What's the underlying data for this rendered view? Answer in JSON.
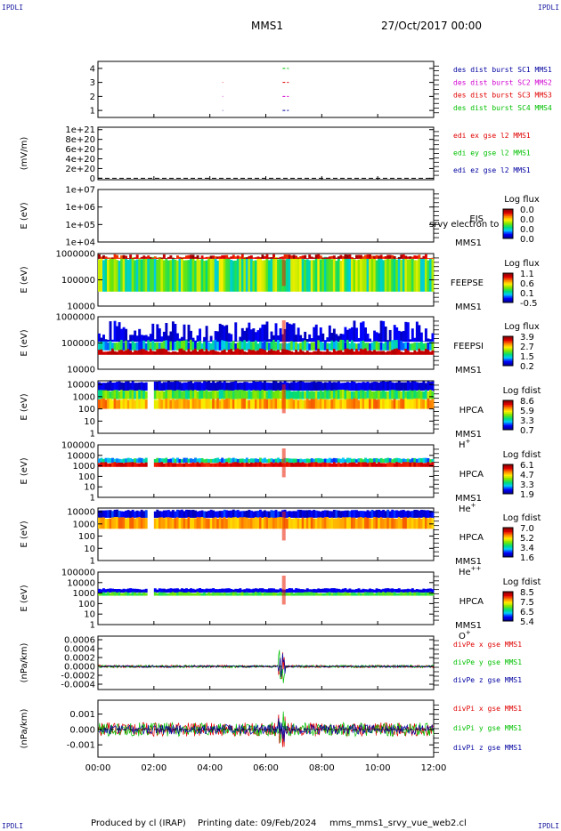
{
  "header": {
    "corner_tl": "IPDLI",
    "corner_tr": "IPDLI",
    "corner_bl": "IPDLI",
    "corner_br": "IPDLI",
    "mission": "MMS1",
    "date": "27/Oct/2017 00:00"
  },
  "footer": {
    "produced": "Produced by cl (IRAP)",
    "printed": "Printing date: 09/Feb/2024",
    "script": "mms_mms1_srvy_vue_web2.cl"
  },
  "chart_data": {
    "type": "multi-panel",
    "x_ticks": [
      "00:00",
      "02:00",
      "04:00",
      "06:00",
      "08:00",
      "10:00",
      "12:00"
    ],
    "x_range_hours": [
      0,
      12
    ],
    "panels": [
      {
        "id": "burst",
        "type": "scatter",
        "ylabel": "",
        "ticks": [
          "4",
          "3",
          "2",
          "1"
        ],
        "tick_values": [
          4,
          3,
          2,
          1
        ],
        "ylim": [
          0.5,
          4.5
        ],
        "series": [
          {
            "name": "des dist burst SC1 MMS1",
            "color": "#0000a0",
            "level": 1,
            "segments": [
              [
                4.45,
                4.47
              ],
              [
                6.6,
                6.82
              ]
            ]
          },
          {
            "name": "des dist burst SC2 MMS2",
            "color": "#d000d0",
            "level": 2,
            "segments": [
              [
                4.45,
                4.47
              ],
              [
                6.6,
                6.82
              ]
            ]
          },
          {
            "name": "des dist burst SC3 MMS3",
            "color": "#e00000",
            "level": 3,
            "segments": [
              [
                4.45,
                4.47
              ],
              [
                6.6,
                6.82
              ]
            ]
          },
          {
            "name": "des dist burst SC4 MMS4",
            "color": "#00c000",
            "level": 4,
            "segments": [
              [
                6.6,
                6.82
              ]
            ]
          }
        ]
      },
      {
        "id": "edi",
        "type": "line",
        "ylabel": "(mV/m)",
        "ticks": [
          "1e+21",
          "8e+20",
          "6e+20",
          "4e+20",
          "2e+20",
          "0"
        ],
        "tick_values": [
          1e+21,
          8e+20,
          6e+20,
          4e+20,
          2e+20,
          0
        ],
        "ylim": [
          -3e+19,
          1.05e+21
        ],
        "series": [
          {
            "name": "edi ex gse l2 MMS1",
            "color": "#e00000"
          },
          {
            "name": "edi ey gse l2 MMS1",
            "color": "#00c000"
          },
          {
            "name": "edi ez gse l2 MMS1",
            "color": "#0000a0"
          }
        ]
      },
      {
        "id": "eis",
        "type": "heatmap",
        "ylabel": "E (eV)",
        "ticks": [
          "1e+07",
          "1e+06",
          "1e+05",
          "1e+04"
        ],
        "log": true,
        "ylim_exp": [
          4,
          7
        ],
        "labels": [
          "EIS",
          "MMS1"
        ],
        "overlay_text": "srvy electron to",
        "colorbar": {
          "title": "Log flux",
          "values": [
            "0.0",
            "0.0",
            "0.0",
            "0.0"
          ]
        },
        "filled": false
      },
      {
        "id": "feepse",
        "type": "heatmap",
        "ylabel": "E (eV)",
        "ticks": [
          "1000000",
          "100000",
          "10000"
        ],
        "log": true,
        "ylim_exp": [
          4,
          6
        ],
        "labels": [
          "FEEPSE",
          "MMS1"
        ],
        "colorbar": {
          "title": "Log flux",
          "values": [
            "1.1",
            "0.6",
            "0.1",
            "-0.5"
          ]
        },
        "filled": true
      },
      {
        "id": "feepsi",
        "type": "heatmap",
        "ylabel": "E (eV)",
        "ticks": [
          "1000000",
          "100000",
          "10000"
        ],
        "log": true,
        "ylim_exp": [
          4,
          6
        ],
        "labels": [
          "FEEPSI",
          "MMS1"
        ],
        "colorbar": {
          "title": "Log flux",
          "values": [
            "3.9",
            "2.7",
            "1.5",
            "0.2"
          ]
        },
        "filled": true
      },
      {
        "id": "hpca_h",
        "type": "heatmap",
        "ylabel": "E (eV)",
        "ticks": [
          "10000",
          "1000",
          "100",
          "10",
          "1"
        ],
        "log": true,
        "ylim_exp": [
          0,
          4.3
        ],
        "labels": [
          "HPCA",
          "MMS1"
        ],
        "species": "H",
        "species_sup": "+",
        "colorbar": {
          "title": "Log fdist",
          "values": [
            "8.6",
            "5.9",
            "3.3",
            "0.7"
          ]
        },
        "filled": true
      },
      {
        "id": "hpca_he",
        "type": "heatmap",
        "ylabel": "E (eV)",
        "ticks": [
          "100000",
          "10000",
          "1000",
          "100",
          "10",
          "1"
        ],
        "log": true,
        "ylim_exp": [
          0,
          5
        ],
        "labels": [
          "HPCA",
          "MMS1"
        ],
        "species": "He",
        "species_sup": "+",
        "colorbar": {
          "title": "Log fdist",
          "values": [
            "6.1",
            "4.7",
            "3.3",
            "1.9"
          ]
        },
        "filled": true
      },
      {
        "id": "hpca_he2",
        "type": "heatmap",
        "ylabel": "E (eV)",
        "ticks": [
          "10000",
          "1000",
          "100",
          "10",
          "1"
        ],
        "log": true,
        "ylim_exp": [
          0,
          4.3
        ],
        "labels": [
          "HPCA",
          "MMS1"
        ],
        "species": "He",
        "species_sup": "++",
        "colorbar": {
          "title": "Log fdist",
          "values": [
            "7.0",
            "5.2",
            "3.4",
            "1.6"
          ]
        },
        "filled": true
      },
      {
        "id": "hpca_o",
        "type": "heatmap",
        "ylabel": "E (eV)",
        "ticks": [
          "100000",
          "10000",
          "1000",
          "100",
          "10",
          "1"
        ],
        "log": true,
        "ylim_exp": [
          0,
          5
        ],
        "labels": [
          "HPCA",
          "MMS1"
        ],
        "species": "O",
        "species_sup": "+",
        "colorbar": {
          "title": "Log fdist",
          "values": [
            "8.5",
            "7.5",
            "6.5",
            "5.4"
          ]
        },
        "filled": true
      },
      {
        "id": "divpe",
        "type": "line",
        "ylabel": "(nPa/km)",
        "ticks": [
          "0.0006",
          "0.0004",
          "0.0002",
          "0.0000",
          "-0.0002",
          "-0.0004"
        ],
        "tick_values": [
          0.0006,
          0.0004,
          0.0002,
          0,
          -0.0002,
          -0.0004
        ],
        "ylim": [
          -0.00052,
          0.00068
        ],
        "series": [
          {
            "name": "divPe x gse MMS1",
            "color": "#e00000"
          },
          {
            "name": "divPe y gse MMS1",
            "color": "#00c000"
          },
          {
            "name": "divPe z gse MMS1",
            "color": "#0000a0"
          }
        ]
      },
      {
        "id": "divpi",
        "type": "line",
        "ylabel": "(nPa/km)",
        "ticks": [
          "0.001",
          "0.000",
          "-0.001"
        ],
        "tick_values": [
          0.001,
          0,
          -0.001
        ],
        "ylim": [
          -0.0018,
          0.0019
        ],
        "series": [
          {
            "name": "divPi x gse MMS1",
            "color": "#e00000"
          },
          {
            "name": "divPi y gse MMS1",
            "color": "#00c000"
          },
          {
            "name": "divPi z gse MMS1",
            "color": "#0000a0"
          }
        ]
      }
    ]
  }
}
